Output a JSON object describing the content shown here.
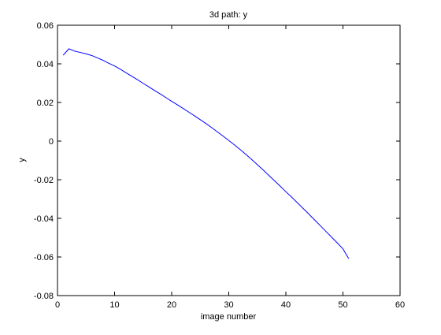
{
  "chart_data": {
    "type": "line",
    "title": "3d path: y",
    "xlabel": "image number",
    "ylabel": "y",
    "xlim": [
      0,
      60
    ],
    "ylim": [
      -0.08,
      0.06
    ],
    "xticks": [
      0,
      10,
      20,
      30,
      40,
      50,
      60
    ],
    "xtick_labels": [
      "0",
      "10",
      "20",
      "30",
      "40",
      "50",
      "60"
    ],
    "yticks": [
      -0.08,
      -0.06,
      -0.04,
      -0.02,
      0,
      0.02,
      0.04,
      0.06
    ],
    "ytick_labels": [
      "-0.08",
      "-0.06",
      "-0.04",
      "-0.02",
      "0",
      "0.02",
      "0.04",
      "0.06"
    ],
    "grid": false,
    "series": [
      {
        "color": "#0000ff",
        "x": [
          1,
          2,
          3,
          4,
          5,
          6,
          7,
          8,
          9,
          10,
          11,
          12,
          13,
          14,
          15,
          16,
          17,
          18,
          19,
          20,
          21,
          22,
          23,
          24,
          25,
          26,
          27,
          28,
          29,
          30,
          31,
          32,
          33,
          34,
          35,
          36,
          37,
          38,
          39,
          40,
          41,
          42,
          43,
          44,
          45,
          46,
          47,
          48,
          49,
          50,
          51
        ],
        "values": [
          0.0445,
          0.0478,
          0.0466,
          0.0459,
          0.0452,
          0.0443,
          0.0431,
          0.0418,
          0.0403,
          0.0389,
          0.0372,
          0.0354,
          0.0336,
          0.0318,
          0.0299,
          0.0281,
          0.0262,
          0.0244,
          0.0225,
          0.0206,
          0.0188,
          0.0169,
          0.015,
          0.0131,
          0.0111,
          0.0091,
          0.007,
          0.0048,
          0.0026,
          0.0003,
          -0.002,
          -0.0044,
          -0.0069,
          -0.0095,
          -0.0122,
          -0.0149,
          -0.0177,
          -0.0205,
          -0.0233,
          -0.0262,
          -0.029,
          -0.0319,
          -0.0348,
          -0.0377,
          -0.0407,
          -0.0437,
          -0.0467,
          -0.0497,
          -0.0527,
          -0.0558,
          -0.0608
        ]
      }
    ]
  }
}
